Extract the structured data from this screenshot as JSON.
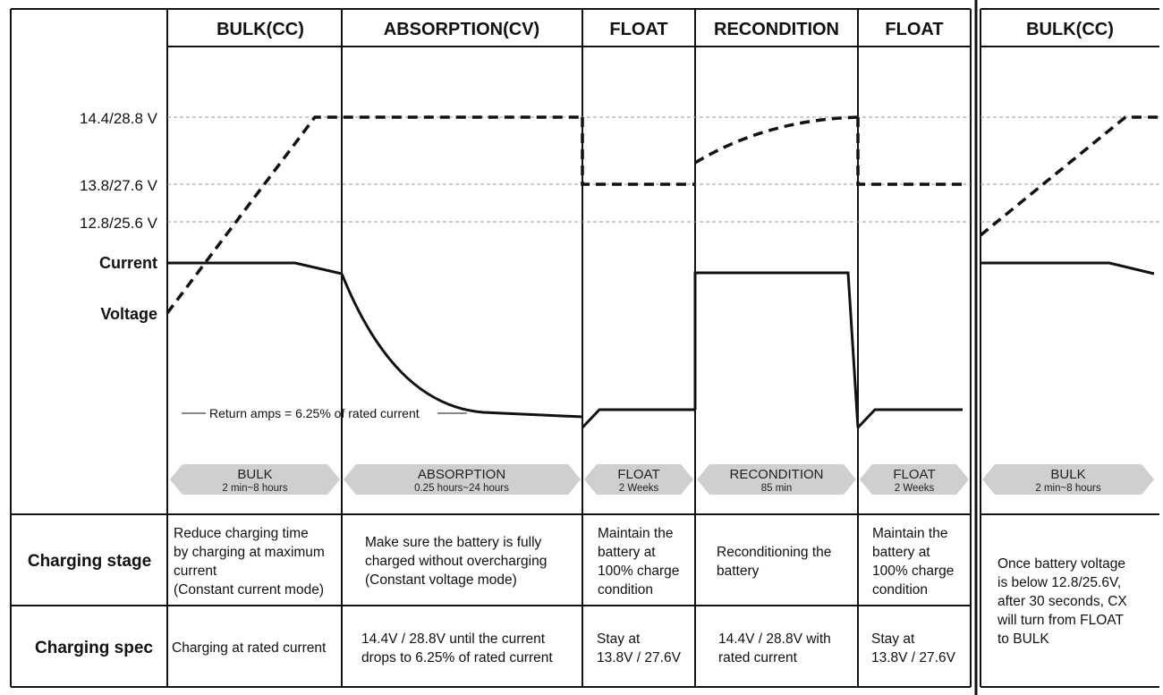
{
  "stages": [
    {
      "id": "bulk",
      "header": "BULK(CC)",
      "arrow_name": "BULK",
      "arrow_duration": "2 min~8 hours",
      "charging_stage": [
        "Reduce charging time",
        "by charging at maximum",
        "current",
        "(Constant current mode)"
      ],
      "charging_spec": [
        "Charging at rated current"
      ]
    },
    {
      "id": "absorption",
      "header": "ABSORPTION(CV)",
      "arrow_name": "ABSORPTION",
      "arrow_duration": "0.25 hours~24 hours",
      "charging_stage": [
        "Make sure the battery is fully",
        "charged without overcharging",
        "(Constant voltage mode)"
      ],
      "charging_spec": [
        "14.4V / 28.8V until the current",
        "drops to 6.25% of rated current"
      ]
    },
    {
      "id": "float1",
      "header": "FLOAT",
      "arrow_name": "FLOAT",
      "arrow_duration": "2 Weeks",
      "charging_stage": [
        "Maintain the",
        "battery at",
        "100% charge",
        "condition"
      ],
      "charging_spec": [
        "Stay at",
        "13.8V / 27.6V"
      ]
    },
    {
      "id": "recondition",
      "header": "RECONDITION",
      "arrow_name": "RECONDITION",
      "arrow_duration": "85 min",
      "charging_stage": [
        "Reconditioning the",
        "battery"
      ],
      "charging_spec": [
        "14.4V / 28.8V with",
        "rated current"
      ]
    },
    {
      "id": "float2",
      "header": "FLOAT",
      "arrow_name": "FLOAT",
      "arrow_duration": "2 Weeks",
      "charging_stage": [
        "Maintain the",
        "battery at",
        "100% charge",
        "condition"
      ],
      "charging_spec": [
        "Stay at",
        "13.8V / 27.6V"
      ]
    },
    {
      "id": "bulk2",
      "header": "BULK(CC)",
      "arrow_name": "BULK",
      "arrow_duration": "2 min~8 hours"
    }
  ],
  "voltage_levels": [
    "14.4/28.8 V",
    "13.8/27.6 V",
    "12.8/25.6 V"
  ],
  "trace_labels": {
    "current": "Current",
    "voltage": "Voltage"
  },
  "return_amps_note": "Return amps = 6.25% of rated current",
  "rows": {
    "charging_stage": "Charging stage",
    "charging_spec": "Charging spec"
  },
  "restart_note": [
    "Once battery voltage",
    "is below 12.8/25.6V,",
    "after 30 seconds, CX",
    "will turn from FLOAT",
    "to BULK"
  ],
  "colors": {
    "line": "#111111",
    "gridline": "#9a9a9a",
    "arrow_fill": "#cfcfcf"
  }
}
